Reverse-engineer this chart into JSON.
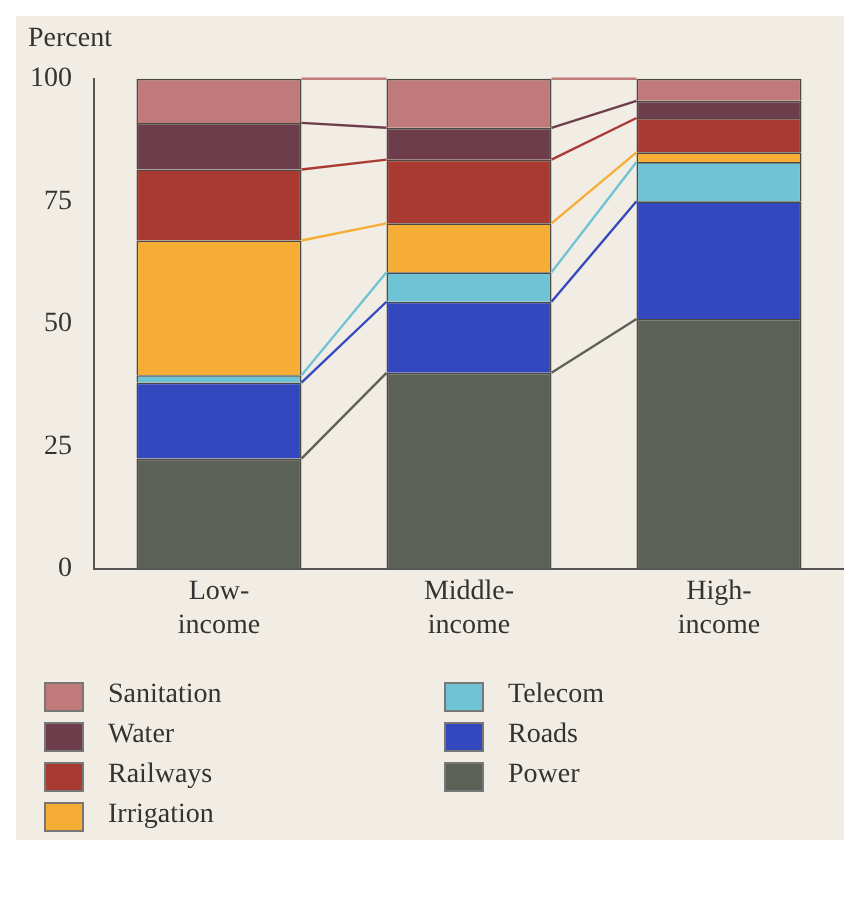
{
  "chart_data": {
    "type": "bar",
    "stacked": true,
    "ylabel": "Percent",
    "categories": [
      "Low-income",
      "Middle-income",
      "High-income"
    ],
    "series": [
      {
        "name": "Power",
        "color": "#5c6157",
        "values": [
          22.5,
          40,
          51
        ]
      },
      {
        "name": "Roads",
        "color": "#3347bf",
        "values": [
          15.5,
          14.5,
          24
        ]
      },
      {
        "name": "Telecom",
        "color": "#6ec3d4",
        "values": [
          1.5,
          6,
          8
        ]
      },
      {
        "name": "Irrigation",
        "color": "#f5ad35",
        "values": [
          27.5,
          10,
          2
        ]
      },
      {
        "name": "Railways",
        "color": "#a83a32",
        "values": [
          14.5,
          13,
          7
        ]
      },
      {
        "name": "Water",
        "color": "#6e3d4c",
        "values": [
          9.5,
          6.5,
          3.5
        ]
      },
      {
        "name": "Sanitation",
        "color": "#c07a7a",
        "values": [
          9,
          10,
          4.5
        ]
      }
    ],
    "ylim": [
      0,
      100
    ],
    "yticks": [
      0,
      25,
      50,
      75,
      100
    ],
    "grid": false,
    "legend": "bottom"
  }
}
